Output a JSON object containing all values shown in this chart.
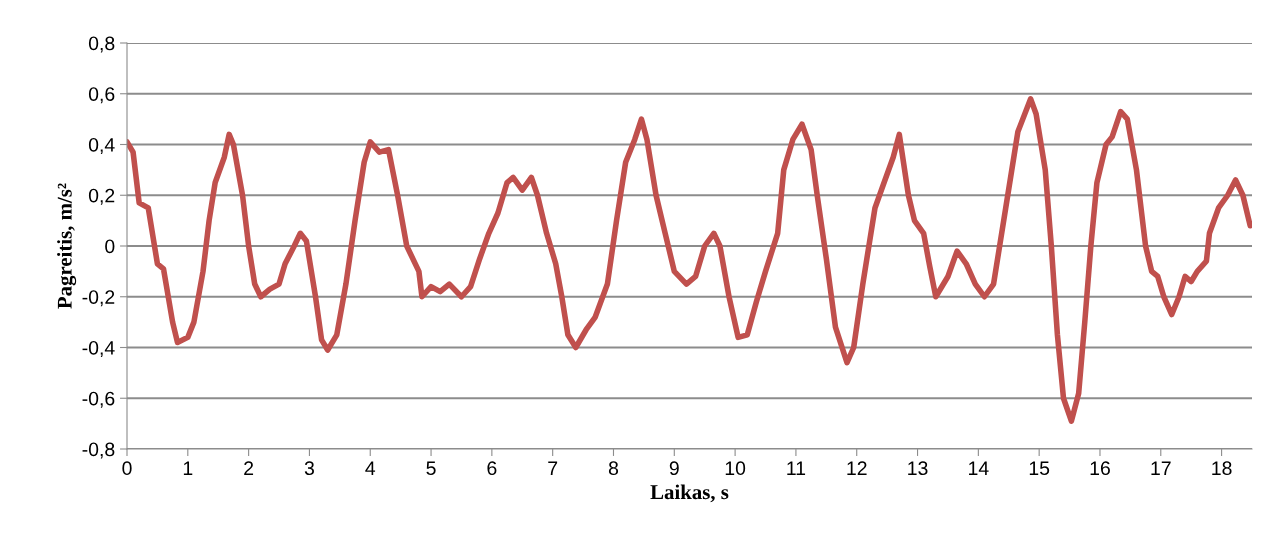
{
  "chart_data": {
    "type": "line",
    "xlabel": "Laikas, s",
    "ylabel": "Pagreitis, m/s²",
    "xlim": [
      0,
      18.5
    ],
    "ylim": [
      -0.8,
      0.8
    ],
    "xticks": [
      0,
      1,
      2,
      3,
      4,
      5,
      6,
      7,
      8,
      9,
      10,
      11,
      12,
      13,
      14,
      15,
      16,
      17,
      18
    ],
    "yticks": [
      {
        "value": -0.8,
        "label": "-0,8"
      },
      {
        "value": -0.6,
        "label": "-0,6"
      },
      {
        "value": -0.4,
        "label": "-0,4"
      },
      {
        "value": -0.2,
        "label": "-0,2"
      },
      {
        "value": 0,
        "label": "0"
      },
      {
        "value": 0.2,
        "label": "0,2"
      },
      {
        "value": 0.4,
        "label": "0,4"
      },
      {
        "value": 0.6,
        "label": "0,6"
      },
      {
        "value": 0.8,
        "label": "0,8"
      }
    ],
    "grid": "y",
    "legend": false,
    "marker": "none",
    "line_style": "solid",
    "series": [
      {
        "color": "#c0504d",
        "x": [
          0,
          0.1,
          0.2,
          0.35,
          0.5,
          0.6,
          0.75,
          0.83,
          1.0,
          1.1,
          1.25,
          1.35,
          1.45,
          1.6,
          1.68,
          1.75,
          1.9,
          2.0,
          2.1,
          2.2,
          2.35,
          2.5,
          2.6,
          2.75,
          2.85,
          2.95,
          3.1,
          3.2,
          3.3,
          3.45,
          3.6,
          3.75,
          3.9,
          4.0,
          4.15,
          4.3,
          4.45,
          4.6,
          4.8,
          4.85,
          5.0,
          5.15,
          5.3,
          5.5,
          5.65,
          5.8,
          5.95,
          6.1,
          6.25,
          6.35,
          6.5,
          6.65,
          6.75,
          6.9,
          7.05,
          7.15,
          7.25,
          7.38,
          7.55,
          7.7,
          7.9,
          8.05,
          8.2,
          8.35,
          8.46,
          8.55,
          8.7,
          8.85,
          9.0,
          9.2,
          9.35,
          9.5,
          9.65,
          9.75,
          9.9,
          10.05,
          10.2,
          10.35,
          10.5,
          10.7,
          10.8,
          10.95,
          11.1,
          11.25,
          11.35,
          11.5,
          11.65,
          11.84,
          11.95,
          12.1,
          12.3,
          12.45,
          12.6,
          12.7,
          12.85,
          12.95,
          13.1,
          13.2,
          13.3,
          13.5,
          13.65,
          13.8,
          13.95,
          14.1,
          14.25,
          14.45,
          14.65,
          14.86,
          14.95,
          15.1,
          15.2,
          15.3,
          15.4,
          15.53,
          15.65,
          15.75,
          15.85,
          15.95,
          16.1,
          16.2,
          16.34,
          16.45,
          16.6,
          16.75,
          16.85,
          16.95,
          17.05,
          17.18,
          17.3,
          17.4,
          17.5,
          17.6,
          17.75,
          17.8,
          17.95,
          18.1,
          18.23,
          18.35,
          18.47
        ],
        "values": [
          0.41,
          0.37,
          0.17,
          0.15,
          -0.07,
          -0.09,
          -0.3,
          -0.38,
          -0.36,
          -0.3,
          -0.1,
          0.1,
          0.25,
          0.35,
          0.44,
          0.4,
          0.2,
          0.0,
          -0.15,
          -0.2,
          -0.17,
          -0.15,
          -0.07,
          0.0,
          0.05,
          0.02,
          -0.2,
          -0.37,
          -0.41,
          -0.35,
          -0.15,
          0.1,
          0.33,
          0.41,
          0.37,
          0.38,
          0.2,
          0.0,
          -0.1,
          -0.2,
          -0.16,
          -0.18,
          -0.15,
          -0.2,
          -0.16,
          -0.05,
          0.05,
          0.13,
          0.25,
          0.27,
          0.22,
          0.27,
          0.2,
          0.05,
          -0.07,
          -0.2,
          -0.35,
          -0.4,
          -0.33,
          -0.28,
          -0.15,
          0.1,
          0.33,
          0.42,
          0.5,
          0.42,
          0.2,
          0.05,
          -0.1,
          -0.15,
          -0.12,
          0.0,
          0.05,
          0.0,
          -0.2,
          -0.36,
          -0.35,
          -0.22,
          -0.1,
          0.05,
          0.3,
          0.42,
          0.48,
          0.38,
          0.2,
          -0.05,
          -0.32,
          -0.46,
          -0.4,
          -0.15,
          0.15,
          0.25,
          0.35,
          0.44,
          0.2,
          0.1,
          0.05,
          -0.08,
          -0.2,
          -0.12,
          -0.02,
          -0.07,
          -0.15,
          -0.2,
          -0.15,
          0.15,
          0.45,
          0.58,
          0.52,
          0.3,
          0.0,
          -0.35,
          -0.6,
          -0.69,
          -0.58,
          -0.3,
          0.0,
          0.25,
          0.4,
          0.43,
          0.53,
          0.5,
          0.3,
          0.0,
          -0.1,
          -0.12,
          -0.2,
          -0.27,
          -0.2,
          -0.12,
          -0.14,
          -0.1,
          -0.06,
          0.05,
          0.15,
          0.2,
          0.26,
          0.2,
          0.08
        ]
      }
    ]
  }
}
